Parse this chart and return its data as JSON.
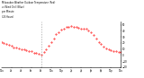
{
  "title": "Milwaukee Weather Outdoor Temperature (Red) vs Wind Chill (Blue) per Minute (24 Hours)",
  "bg_color": "#ffffff",
  "line_color_temp": "#ff0000",
  "line_color_wind": "#0000ff",
  "vline_x": 480,
  "ylim": [
    -20,
    55
  ],
  "xlim": [
    0,
    1440
  ],
  "yticks": [
    -20,
    -10,
    0,
    10,
    20,
    30,
    40,
    50
  ],
  "temp_data": [
    [
      0,
      22
    ],
    [
      30,
      20
    ],
    [
      60,
      18
    ],
    [
      90,
      17
    ],
    [
      120,
      15
    ],
    [
      150,
      13
    ],
    [
      180,
      12
    ],
    [
      210,
      11
    ],
    [
      240,
      10
    ],
    [
      270,
      9
    ],
    [
      300,
      8
    ],
    [
      330,
      7
    ],
    [
      360,
      6
    ],
    [
      390,
      4
    ],
    [
      420,
      3
    ],
    [
      450,
      2
    ],
    [
      480,
      1
    ],
    [
      510,
      5
    ],
    [
      540,
      10
    ],
    [
      570,
      16
    ],
    [
      600,
      22
    ],
    [
      630,
      28
    ],
    [
      660,
      34
    ],
    [
      690,
      38
    ],
    [
      720,
      42
    ],
    [
      750,
      44
    ],
    [
      780,
      46
    ],
    [
      810,
      47
    ],
    [
      840,
      48
    ],
    [
      870,
      47
    ],
    [
      900,
      46
    ],
    [
      930,
      45
    ],
    [
      960,
      44
    ],
    [
      990,
      44
    ],
    [
      1020,
      43
    ],
    [
      1050,
      41
    ],
    [
      1080,
      38
    ],
    [
      1110,
      33
    ],
    [
      1140,
      27
    ],
    [
      1170,
      22
    ],
    [
      1200,
      18
    ],
    [
      1230,
      14
    ],
    [
      1260,
      11
    ],
    [
      1290,
      9
    ],
    [
      1320,
      8
    ],
    [
      1350,
      7
    ],
    [
      1380,
      6
    ],
    [
      1410,
      5
    ],
    [
      1440,
      5
    ]
  ]
}
